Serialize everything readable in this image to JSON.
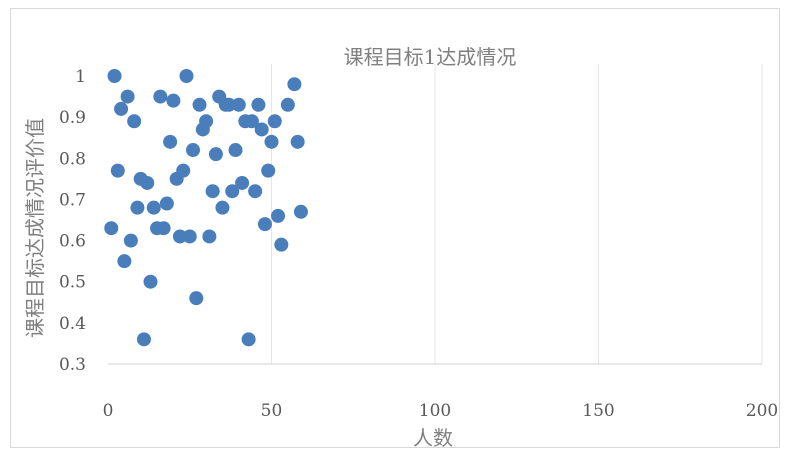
{
  "chart_data": {
    "type": "scatter",
    "title": "课程目标1达成情况",
    "xlabel": "人数",
    "ylabel": "课程目标达成情况评价值",
    "xlim": [
      0,
      200
    ],
    "ylim": [
      0.3,
      1.0
    ],
    "xticks": [
      "0",
      "50",
      "100",
      "150",
      "200"
    ],
    "yticks": [
      "0.3",
      "0.4",
      "0.5",
      "0.6",
      "0.7",
      "0.8",
      "0.9",
      "1"
    ],
    "grid": "vertical",
    "legend": "none",
    "marker_color": "#4a7ebb",
    "points": [
      {
        "x": 1,
        "y": 0.63
      },
      {
        "x": 2,
        "y": 1.0
      },
      {
        "x": 3,
        "y": 0.77
      },
      {
        "x": 4,
        "y": 0.92
      },
      {
        "x": 5,
        "y": 0.55
      },
      {
        "x": 6,
        "y": 0.95
      },
      {
        "x": 7,
        "y": 0.6
      },
      {
        "x": 8,
        "y": 0.89
      },
      {
        "x": 9,
        "y": 0.68
      },
      {
        "x": 10,
        "y": 0.75
      },
      {
        "x": 11,
        "y": 0.36
      },
      {
        "x": 12,
        "y": 0.74
      },
      {
        "x": 13,
        "y": 0.5
      },
      {
        "x": 14,
        "y": 0.68
      },
      {
        "x": 15,
        "y": 0.63
      },
      {
        "x": 16,
        "y": 0.95
      },
      {
        "x": 17,
        "y": 0.63
      },
      {
        "x": 18,
        "y": 0.69
      },
      {
        "x": 19,
        "y": 0.84
      },
      {
        "x": 20,
        "y": 0.94
      },
      {
        "x": 21,
        "y": 0.75
      },
      {
        "x": 22,
        "y": 0.61
      },
      {
        "x": 23,
        "y": 0.77
      },
      {
        "x": 24,
        "y": 1.0
      },
      {
        "x": 25,
        "y": 0.61
      },
      {
        "x": 26,
        "y": 0.82
      },
      {
        "x": 27,
        "y": 0.46
      },
      {
        "x": 28,
        "y": 0.93
      },
      {
        "x": 29,
        "y": 0.87
      },
      {
        "x": 30,
        "y": 0.89
      },
      {
        "x": 31,
        "y": 0.61
      },
      {
        "x": 32,
        "y": 0.72
      },
      {
        "x": 33,
        "y": 0.81
      },
      {
        "x": 34,
        "y": 0.95
      },
      {
        "x": 35,
        "y": 0.68
      },
      {
        "x": 36,
        "y": 0.93
      },
      {
        "x": 37,
        "y": 0.93
      },
      {
        "x": 38,
        "y": 0.72
      },
      {
        "x": 39,
        "y": 0.82
      },
      {
        "x": 40,
        "y": 0.93
      },
      {
        "x": 41,
        "y": 0.74
      },
      {
        "x": 42,
        "y": 0.89
      },
      {
        "x": 43,
        "y": 0.36
      },
      {
        "x": 44,
        "y": 0.89
      },
      {
        "x": 45,
        "y": 0.72
      },
      {
        "x": 46,
        "y": 0.93
      },
      {
        "x": 47,
        "y": 0.87
      },
      {
        "x": 48,
        "y": 0.64
      },
      {
        "x": 49,
        "y": 0.77
      },
      {
        "x": 50,
        "y": 0.84
      },
      {
        "x": 51,
        "y": 0.89
      },
      {
        "x": 52,
        "y": 0.66
      },
      {
        "x": 53,
        "y": 0.59
      },
      {
        "x": 55,
        "y": 0.93
      },
      {
        "x": 57,
        "y": 0.98
      },
      {
        "x": 58,
        "y": 0.84
      },
      {
        "x": 59,
        "y": 0.67
      }
    ]
  }
}
